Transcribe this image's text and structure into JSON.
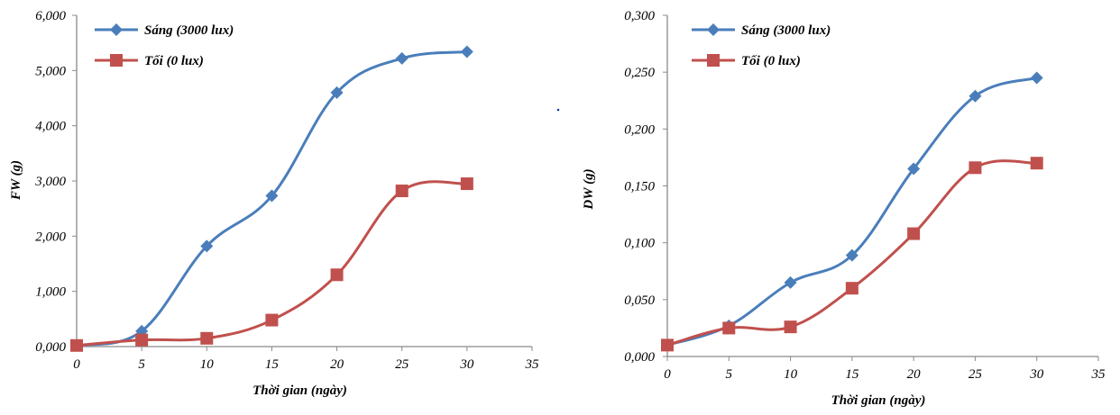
{
  "chart_data": [
    {
      "type": "line",
      "xlabel": "Thời gian (ngày)",
      "ylabel": "FW (g)",
      "xlim": [
        0,
        35
      ],
      "ylim": [
        0,
        6
      ],
      "x_ticks": [
        "0",
        "5",
        "10",
        "15",
        "20",
        "25",
        "30",
        "35"
      ],
      "y_ticks": [
        "0,000",
        "1,000",
        "2,000",
        "3,000",
        "4,000",
        "5,000",
        "6,000"
      ],
      "legend_position": "top-left",
      "grid": false,
      "series": [
        {
          "name": "Sáng (3000 lux)",
          "color": "#4a7ebb",
          "marker": "diamond",
          "x": [
            0,
            5,
            10,
            15,
            20,
            25,
            30
          ],
          "y": [
            0.02,
            0.28,
            1.82,
            2.73,
            4.6,
            5.22,
            5.34
          ]
        },
        {
          "name": "Tối (0 lux)",
          "color": "#c0504d",
          "marker": "square",
          "x": [
            0,
            5,
            10,
            15,
            20,
            25,
            30
          ],
          "y": [
            0.02,
            0.12,
            0.15,
            0.48,
            1.3,
            2.82,
            2.95
          ]
        }
      ]
    },
    {
      "type": "line",
      "xlabel": "Thời gian (ngày)",
      "ylabel": "DW (g)",
      "xlim": [
        0,
        35
      ],
      "ylim": [
        0,
        0.3
      ],
      "x_ticks": [
        "0",
        "5",
        "10",
        "15",
        "20",
        "25",
        "30",
        "35"
      ],
      "y_ticks": [
        "0,000",
        "0,050",
        "0,100",
        "0,150",
        "0,200",
        "0,250",
        "0,300"
      ],
      "legend_position": "top-left",
      "grid": false,
      "series": [
        {
          "name": "Sáng (3000 lux)",
          "color": "#4a7ebb",
          "marker": "diamond",
          "x": [
            0,
            5,
            10,
            15,
            20,
            25,
            30
          ],
          "y": [
            0.01,
            0.027,
            0.065,
            0.089,
            0.165,
            0.229,
            0.245
          ]
        },
        {
          "name": "Tối (0 lux)",
          "color": "#c0504d",
          "marker": "square",
          "x": [
            0,
            5,
            10,
            15,
            20,
            25,
            30
          ],
          "y": [
            0.01,
            0.025,
            0.026,
            0.06,
            0.108,
            0.166,
            0.17
          ]
        }
      ]
    }
  ]
}
